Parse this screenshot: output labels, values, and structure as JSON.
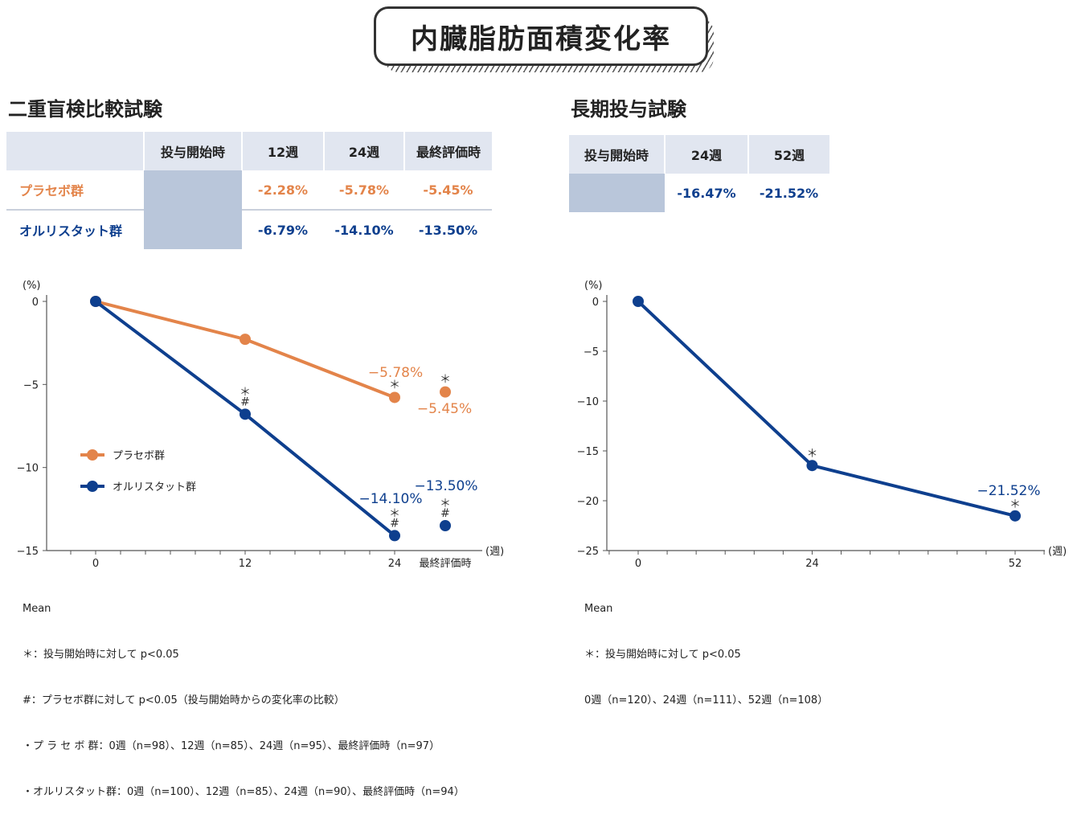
{
  "title": "内臓脂肪面積変化率",
  "left": {
    "section_title": "二重盲検比較試験",
    "table": {
      "headers": [
        "",
        "投与開始時",
        "12週",
        "24週",
        "最終評価時"
      ],
      "rows": [
        {
          "label": "プラセボ群",
          "values": [
            "-2.28%",
            "-5.78%",
            "-5.45%"
          ]
        },
        {
          "label": "オルリスタット群",
          "values": [
            "-6.79%",
            "-14.10%",
            "-13.50%"
          ]
        }
      ]
    },
    "footnotes": [
      "Mean",
      "＊：投与開始時に対して p<0.05",
      "#：プラセボ群に対して p<0.05（投与開始時からの変化率の比較）",
      "・プ ラ セ ボ 群：0週（n=98）、12週（n=85）、24週（n=95）、最終評価時（n=97）",
      "・オルリスタット群：0週（n=100）、12週（n=85）、24週（n=90）、最終評価時（n=94）"
    ]
  },
  "right": {
    "section_title": "長期投与試験",
    "table": {
      "headers": [
        "投与開始時",
        "24週",
        "52週"
      ],
      "values": [
        "-16.47%",
        "-21.52%"
      ]
    },
    "footnotes": [
      "Mean",
      "＊：投与開始時に対して p<0.05",
      "0週（n=120）、24週（n=111）、52週（n=108）"
    ]
  },
  "colors": {
    "placebo": "#e3844a",
    "orlistat": "#0e3f8e",
    "axis": "#555555"
  },
  "chart_data": [
    {
      "type": "line",
      "ylabel": "(%)",
      "xlabel": "(週)",
      "ylim": [
        -15,
        0
      ],
      "yticks": [
        0,
        -5,
        -10,
        -15
      ],
      "x": [
        "0",
        "12",
        "24",
        "最終評価時"
      ],
      "series": [
        {
          "name": "プラセボ群",
          "color": "#e3844a",
          "values": [
            0,
            -2.28,
            -5.78,
            -5.45
          ],
          "connected_points": 3,
          "labels": [
            "",
            "",
            "-5.78%",
            "-5.45%"
          ],
          "marks": [
            "",
            "",
            "＊",
            "＊"
          ]
        },
        {
          "name": "オルリスタット群",
          "color": "#0e3f8e",
          "values": [
            0,
            -6.79,
            -14.1,
            -13.5
          ],
          "connected_points": 3,
          "labels": [
            "",
            "",
            "-14.10%",
            "-13.50%"
          ],
          "marks": [
            "",
            "＊ #",
            "＊ #",
            "＊ #"
          ]
        }
      ],
      "legend": "left-middle"
    },
    {
      "type": "line",
      "ylabel": "(%)",
      "xlabel": "(週)",
      "ylim": [
        -25,
        0
      ],
      "yticks": [
        0,
        -5,
        -10,
        -15,
        -20,
        -25
      ],
      "xlim": [
        0,
        52
      ],
      "x": [
        0,
        24,
        52
      ],
      "series": [
        {
          "name": "",
          "color": "#0e3f8e",
          "values": [
            0,
            -16.47,
            -21.52
          ],
          "labels": [
            "",
            "",
            "-21.52%"
          ],
          "marks": [
            "",
            "＊",
            "＊"
          ]
        }
      ]
    }
  ]
}
